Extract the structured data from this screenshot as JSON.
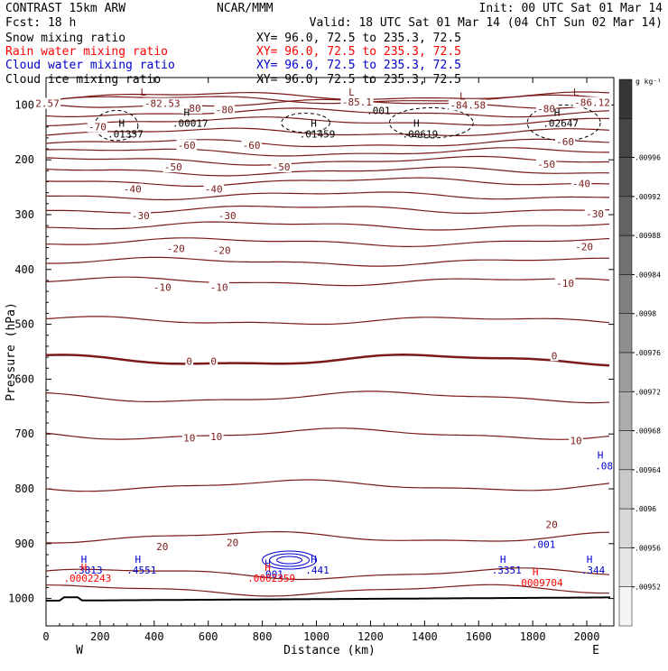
{
  "header": {
    "title_left": "CONTRAST 15km ARW",
    "title_center": "NCAR/MMM",
    "init": "Init: 00 UTC Sat 01 Mar 14",
    "fcst": "Fcst:   18 h",
    "valid": "Valid: 18 UTC Sat 01 Mar 14 (04 ChT Sun 02 Mar 14)",
    "fields": [
      {
        "name": "Snow mixing ratio",
        "xy": "XY=  96.0, 72.5 to 235.3, 72.5",
        "color": "#000000"
      },
      {
        "name": "Rain water mixing ratio",
        "xy": "XY=  96.0, 72.5 to 235.3, 72.5",
        "color": "#ff0000"
      },
      {
        "name": "Cloud water mixing ratio",
        "xy": "XY=  96.0, 72.5 to 235.3, 72.5",
        "color": "#0000cc"
      },
      {
        "name": "Cloud ice mixing ratio",
        "xy": "XY=  96.0, 72.5 to 235.3, 72.5",
        "color": "#000000"
      }
    ]
  },
  "chart_data": {
    "type": "contour",
    "xlabel": "Distance (km)",
    "ylabel": "Pressure (hPa)",
    "xlim": [
      0,
      2100
    ],
    "ylim": [
      1050,
      50
    ],
    "x_ticks": [
      0,
      200,
      400,
      600,
      800,
      1000,
      1200,
      1400,
      1600,
      1800,
      2000
    ],
    "y_ticks": [
      100,
      200,
      300,
      400,
      500,
      600,
      700,
      800,
      900,
      1000
    ],
    "x_end_labels": {
      "left": "W",
      "right": "E"
    },
    "temperature_contours": {
      "color": "#7a1a1a",
      "isotherms": [
        {
          "value": -80,
          "p": 98
        },
        {
          "value": -70,
          "p": 130
        },
        {
          "value": -60,
          "p": 170
        },
        {
          "value": -50,
          "p": 202
        },
        {
          "value": -40,
          "p": 240
        },
        {
          "value": -30,
          "p": 290
        },
        {
          "value": -20,
          "p": 350
        },
        {
          "value": -10,
          "p": 422
        },
        {
          "value": 0,
          "p": 565
        },
        {
          "value": 10,
          "p": 700
        },
        {
          "value": 20,
          "p": 888
        }
      ],
      "labels": [
        {
          "text": "2.57",
          "x": 5,
          "p": 97
        },
        {
          "text": "-82.53",
          "x": 430,
          "p": 97
        },
        {
          "text": "-80",
          "x": 540,
          "p": 106
        },
        {
          "text": "-80",
          "x": 660,
          "p": 108
        },
        {
          "text": "-85.1",
          "x": 1150,
          "p": 94
        },
        {
          "text": "-84.58",
          "x": 1560,
          "p": 100
        },
        {
          "text": "-80",
          "x": 1850,
          "p": 107
        },
        {
          "text": "-86.12",
          "x": 2020,
          "p": 95
        },
        {
          "text": "-70",
          "x": 190,
          "p": 140
        },
        {
          "text": "-60",
          "x": 520,
          "p": 173
        },
        {
          "text": "-60",
          "x": 760,
          "p": 173
        },
        {
          "text": "-60",
          "x": 1920,
          "p": 167
        },
        {
          "text": "-50",
          "x": 470,
          "p": 213
        },
        {
          "text": "-50",
          "x": 870,
          "p": 213
        },
        {
          "text": "-50",
          "x": 1850,
          "p": 208
        },
        {
          "text": "-40",
          "x": 320,
          "p": 253
        },
        {
          "text": "-40",
          "x": 620,
          "p": 253
        },
        {
          "text": "-40",
          "x": 1980,
          "p": 243
        },
        {
          "text": "-30",
          "x": 350,
          "p": 302
        },
        {
          "text": "-30",
          "x": 670,
          "p": 302
        },
        {
          "text": "-30",
          "x": 2030,
          "p": 298
        },
        {
          "text": "-20",
          "x": 480,
          "p": 362
        },
        {
          "text": "-20",
          "x": 650,
          "p": 365
        },
        {
          "text": "-20",
          "x": 1990,
          "p": 358
        },
        {
          "text": "-10",
          "x": 430,
          "p": 432
        },
        {
          "text": "-10",
          "x": 640,
          "p": 432
        },
        {
          "text": "-10",
          "x": 1920,
          "p": 425
        },
        {
          "text": "0",
          "x": 530,
          "p": 567
        },
        {
          "text": "0",
          "x": 620,
          "p": 567
        },
        {
          "text": "0",
          "x": 1880,
          "p": 557
        },
        {
          "text": "10",
          "x": 530,
          "p": 707
        },
        {
          "text": "10",
          "x": 630,
          "p": 705
        },
        {
          "text": "10",
          "x": 1960,
          "p": 712
        },
        {
          "text": "20",
          "x": 430,
          "p": 905
        },
        {
          "text": "20",
          "x": 690,
          "p": 898
        },
        {
          "text": "20",
          "x": 1870,
          "p": 865
        }
      ]
    },
    "highs_lows": [
      {
        "type": "L",
        "x": 360,
        "p": 83,
        "value": "",
        "color": "#7a1a1a"
      },
      {
        "type": "L",
        "x": 1130,
        "p": 83,
        "value": "",
        "color": "#7a1a1a"
      },
      {
        "type": "L",
        "x": 1540,
        "p": 90,
        "value": "",
        "color": "#7a1a1a"
      },
      {
        "type": "L",
        "x": 1960,
        "p": 83,
        "value": "",
        "color": "#7a1a1a"
      },
      {
        "type": "H",
        "x": 280,
        "p": 140,
        "value": ".01357",
        "color": "#000000"
      },
      {
        "type": "H",
        "x": 520,
        "p": 120,
        "value": ".00017",
        "color": "#000000"
      },
      {
        "type": "H",
        "x": 990,
        "p": 140,
        "value": ".01459",
        "color": "#000000"
      },
      {
        "type": "H",
        "x": 1370,
        "p": 140,
        "value": ".00619",
        "color": "#000000"
      },
      {
        "type": "H",
        "x": 1890,
        "p": 120,
        "value": ".02647",
        "color": "#000000"
      },
      {
        "type": "H",
        "x": 140,
        "p": 935,
        "value": ".3813",
        "color": "#0000cc"
      },
      {
        "type": "H",
        "x": 340,
        "p": 935,
        "value": ".4551",
        "color": "#0000cc"
      },
      {
        "type": "H",
        "x": 820,
        "p": 942,
        "value": ".001",
        "color": "#0000cc"
      },
      {
        "type": "H",
        "x": 990,
        "p": 935,
        "value": ".441",
        "color": "#0000cc"
      },
      {
        "type": "H",
        "x": 1690,
        "p": 935,
        "value": ".3351",
        "color": "#0000cc"
      },
      {
        "type": "H",
        "x": 2010,
        "p": 935,
        "value": ".344",
        "color": "#0000cc"
      },
      {
        "type": "H",
        "x": 2050,
        "p": 745,
        "value": ".08",
        "color": "#0000cc"
      },
      {
        "type": "H",
        "x": 140,
        "p": 950,
        "value": ".0002243",
        "color": "#ff0000"
      },
      {
        "type": "H",
        "x": 820,
        "p": 950,
        "value": ".0002359",
        "color": "#ff0000"
      },
      {
        "type": "H",
        "x": 1810,
        "p": 958,
        "value": ".0009704",
        "color": "#ff0000"
      }
    ],
    "extra_labels": [
      {
        "text": ".001",
        "x": 1230,
        "p": 117,
        "color": "#000000"
      },
      {
        "text": ".001",
        "x": 1840,
        "p": 908,
        "color": "#0000cc"
      }
    ],
    "colorbar": {
      "unit": "g kg⁻¹",
      "ticks": [
        ".00952",
        ".00956",
        ".0096",
        ".00964",
        ".00968",
        ".00972",
        ".00976",
        ".0098",
        ".00984",
        ".00988",
        ".00992",
        ".00996"
      ]
    }
  }
}
